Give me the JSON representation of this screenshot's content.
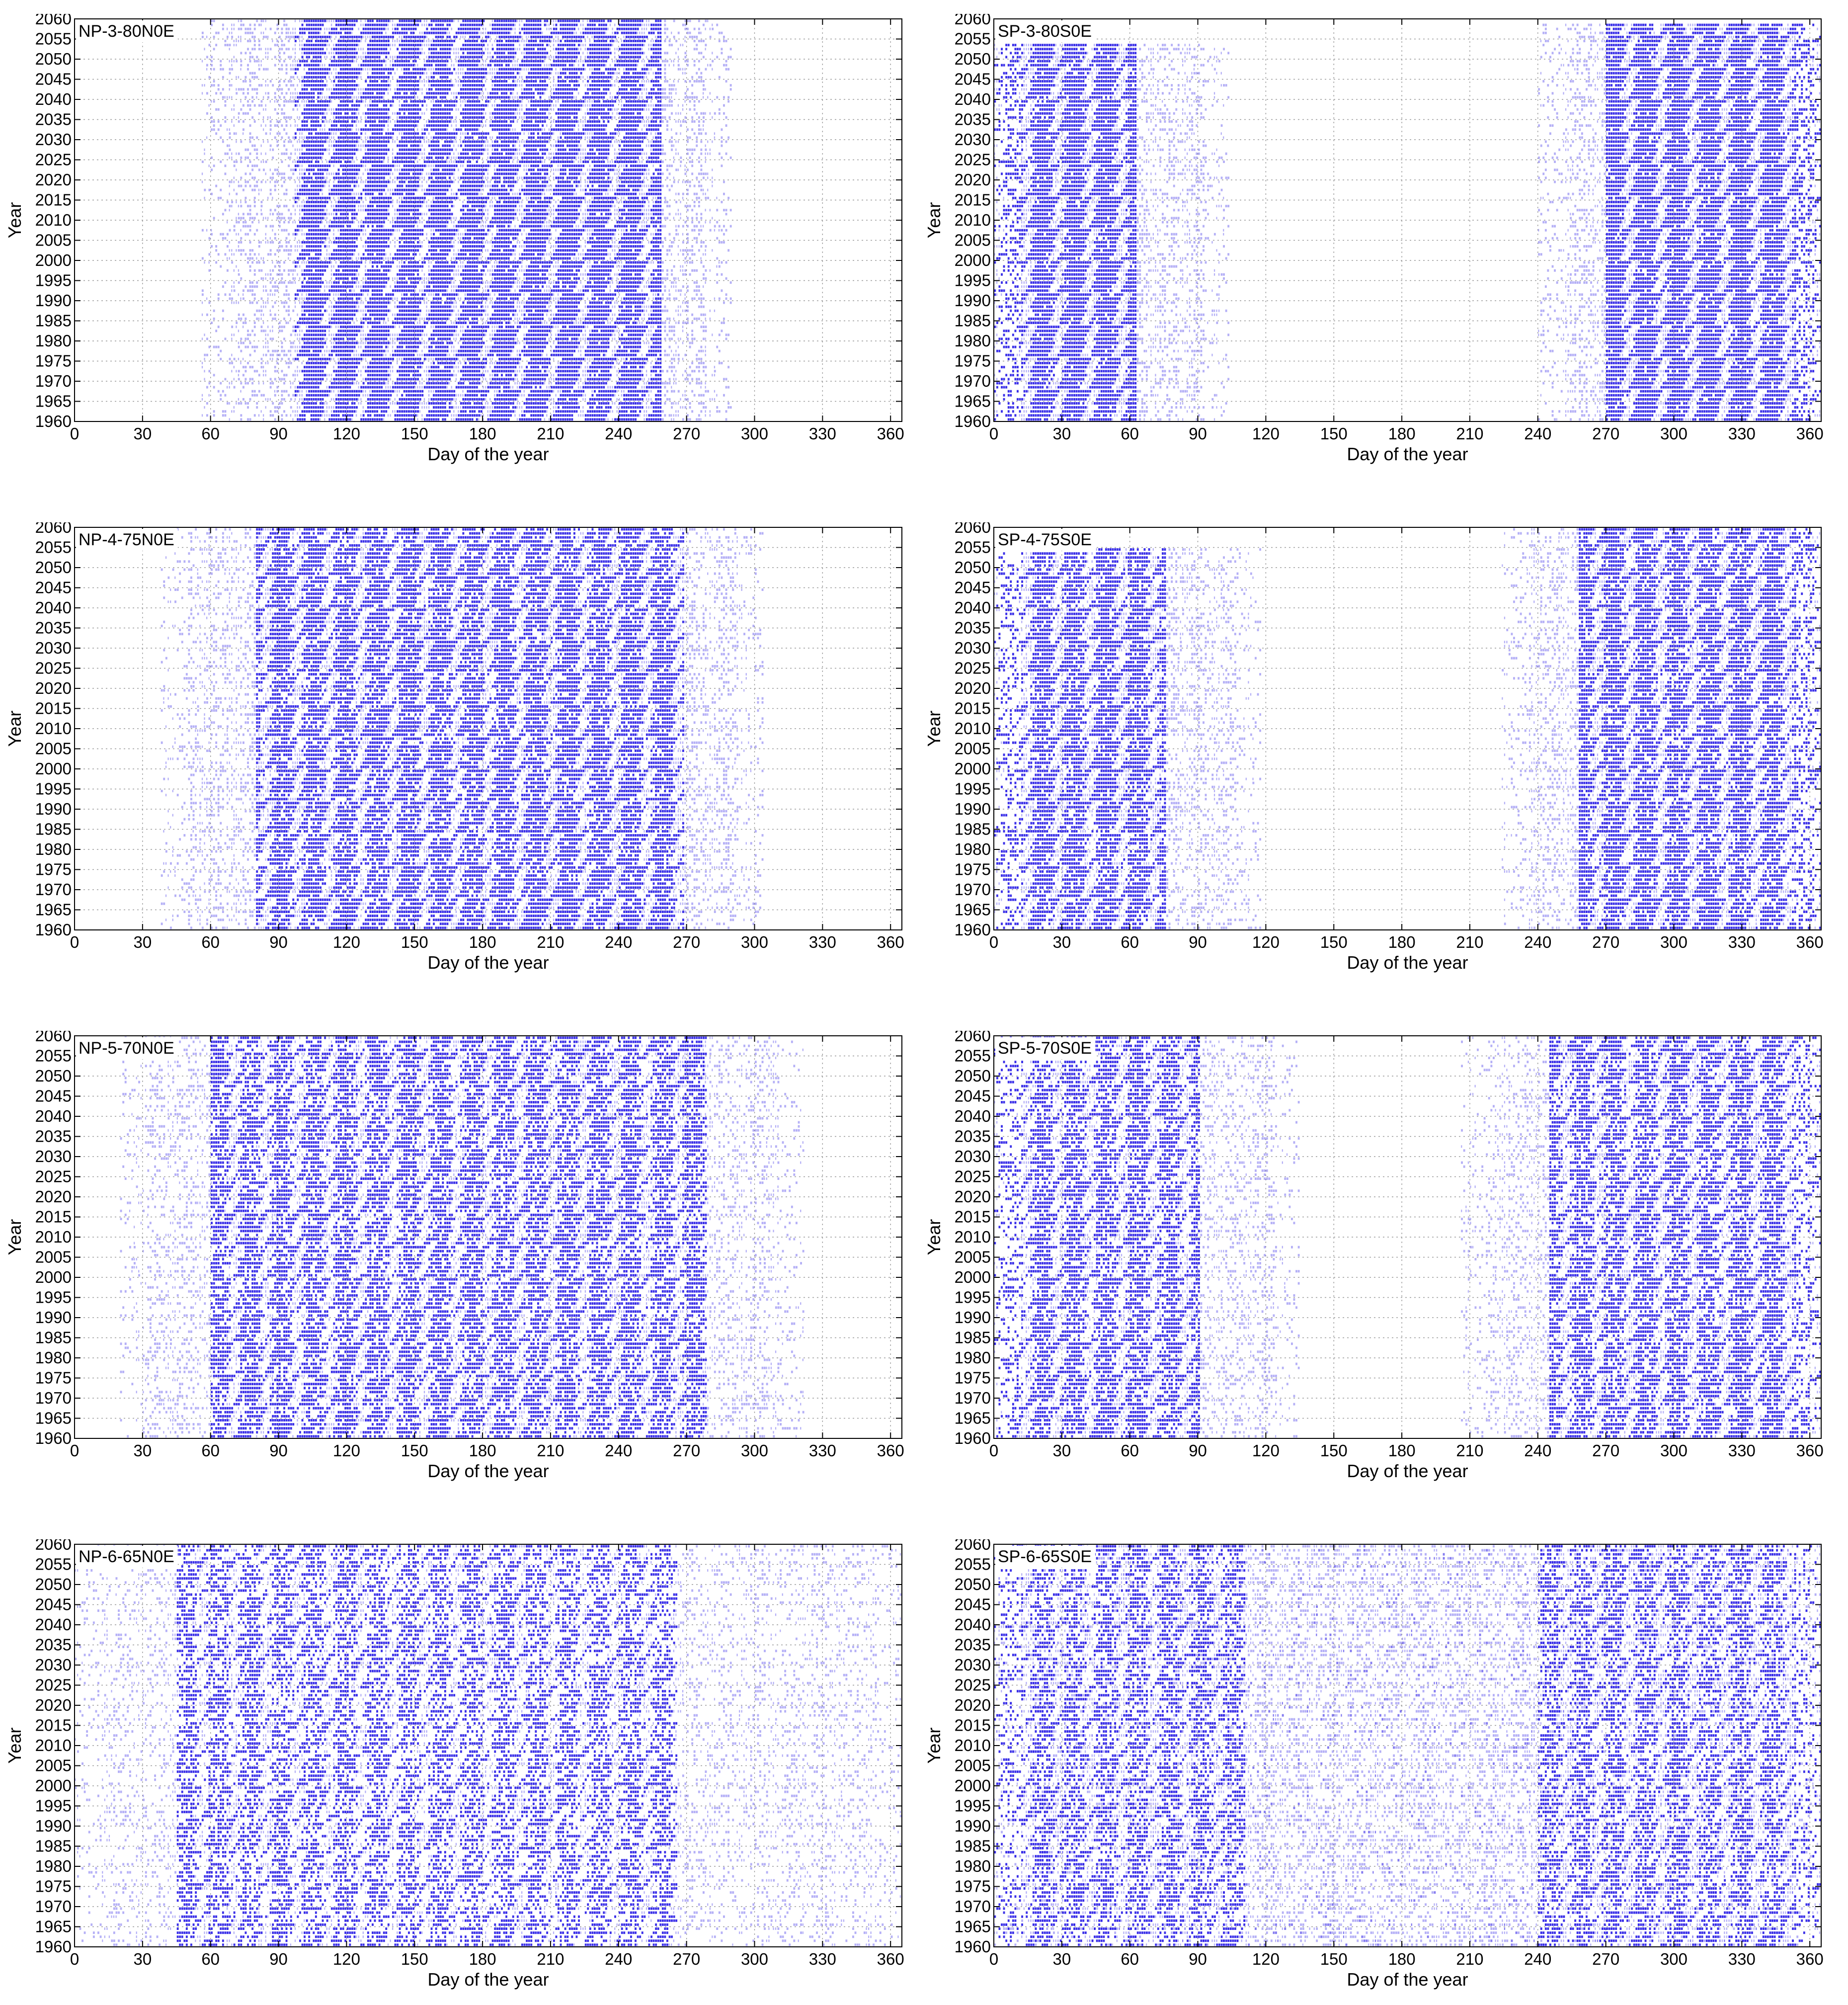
{
  "chart_data": [
    {
      "type": "scatter",
      "title": "NP-3-80N0E",
      "xlabel": "Day of the year",
      "ylabel": "Year",
      "xlim": [
        0,
        365
      ],
      "ylim": [
        1960,
        2060
      ],
      "xticks": [
        "0",
        "30",
        "60",
        "90",
        "120",
        "150",
        "180",
        "210",
        "240",
        "270",
        "300",
        "330",
        "360"
      ],
      "yticks": [
        "1960",
        "1965",
        "1970",
        "1975",
        "1980",
        "1985",
        "1990",
        "1995",
        "2000",
        "2005",
        "2010",
        "2015",
        "2020",
        "2025",
        "2030",
        "2035",
        "2040",
        "2045",
        "2050",
        "2055",
        "2060"
      ],
      "grid": true,
      "color": "#2a1ee6",
      "series": [
        {
          "name": "",
          "day_start": 56,
          "day_end": 290,
          "year_start": 1960,
          "year_end": 2059,
          "core_day_start": 97,
          "core_day_end": 258,
          "density": 0.95
        }
      ]
    },
    {
      "type": "scatter",
      "title": "SP-3-80S0E",
      "xlabel": "Day of the year",
      "ylabel": "Year",
      "xlim": [
        0,
        365
      ],
      "ylim": [
        1960,
        2060
      ],
      "xticks": [
        "0",
        "30",
        "60",
        "90",
        "120",
        "150",
        "180",
        "210",
        "240",
        "270",
        "300",
        "330",
        "360"
      ],
      "yticks": [
        "1960",
        "1965",
        "1970",
        "1975",
        "1980",
        "1985",
        "1990",
        "1995",
        "2000",
        "2005",
        "2010",
        "2015",
        "2020",
        "2025",
        "2030",
        "2035",
        "2040",
        "2045",
        "2050",
        "2055",
        "2060"
      ],
      "grid": true,
      "color": "#2a1ee6",
      "series": [
        {
          "name": "",
          "day_start": 0,
          "day_end": 104,
          "year_start": 1960,
          "year_end": 2053,
          "core_day_start": 0,
          "core_day_end": 62,
          "density": 0.95
        },
        {
          "name": "",
          "day_start": 240,
          "day_end": 365,
          "year_start": 1960,
          "year_end": 2058,
          "core_day_start": 270,
          "core_day_end": 365,
          "density": 0.95
        }
      ]
    },
    {
      "type": "scatter",
      "title": "NP-4-75N0E",
      "xlabel": "Day of the year",
      "ylabel": "Year",
      "xlim": [
        0,
        365
      ],
      "ylim": [
        1960,
        2060
      ],
      "xticks": [
        "0",
        "30",
        "60",
        "90",
        "120",
        "150",
        "180",
        "210",
        "240",
        "270",
        "300",
        "330",
        "360"
      ],
      "yticks": [
        "1960",
        "1965",
        "1970",
        "1975",
        "1980",
        "1985",
        "1990",
        "1995",
        "2000",
        "2005",
        "2010",
        "2015",
        "2020",
        "2025",
        "2030",
        "2035",
        "2040",
        "2045",
        "2050",
        "2055",
        "2060"
      ],
      "grid": true,
      "color": "#2a1ee6",
      "series": [
        {
          "name": "",
          "day_start": 38,
          "day_end": 304,
          "year_start": 1960,
          "year_end": 2059,
          "core_day_start": 80,
          "core_day_end": 268,
          "density": 0.85
        }
      ]
    },
    {
      "type": "scatter",
      "title": "SP-4-75S0E",
      "xlabel": "Day of the year",
      "ylabel": "Year",
      "xlim": [
        0,
        365
      ],
      "ylim": [
        1960,
        2060
      ],
      "xticks": [
        "0",
        "30",
        "60",
        "90",
        "120",
        "150",
        "180",
        "210",
        "240",
        "270",
        "300",
        "330",
        "360"
      ],
      "yticks": [
        "1960",
        "1965",
        "1970",
        "1975",
        "1980",
        "1985",
        "1990",
        "1995",
        "2000",
        "2005",
        "2010",
        "2015",
        "2020",
        "2025",
        "2030",
        "2035",
        "2040",
        "2045",
        "2050",
        "2055",
        "2060"
      ],
      "grid": true,
      "color": "#2a1ee6",
      "series": [
        {
          "name": "",
          "day_start": 0,
          "day_end": 118,
          "year_start": 1960,
          "year_end": 2054,
          "core_day_start": 0,
          "core_day_end": 75,
          "density": 0.85
        },
        {
          "name": "",
          "day_start": 224,
          "day_end": 365,
          "year_start": 1960,
          "year_end": 2059,
          "core_day_start": 258,
          "core_day_end": 365,
          "density": 0.85
        }
      ]
    },
    {
      "type": "scatter",
      "title": "NP-5-70N0E",
      "xlabel": "Day of the year",
      "ylabel": "Year",
      "xlim": [
        0,
        365
      ],
      "ylim": [
        1960,
        2060
      ],
      "xticks": [
        "0",
        "30",
        "60",
        "90",
        "120",
        "150",
        "180",
        "210",
        "240",
        "270",
        "300",
        "330",
        "360"
      ],
      "yticks": [
        "1960",
        "1965",
        "1970",
        "1975",
        "1980",
        "1985",
        "1990",
        "1995",
        "2000",
        "2005",
        "2010",
        "2015",
        "2020",
        "2025",
        "2030",
        "2035",
        "2040",
        "2045",
        "2050",
        "2055",
        "2060"
      ],
      "grid": true,
      "color": "#2a1ee6",
      "series": [
        {
          "name": "",
          "day_start": 20,
          "day_end": 322,
          "year_start": 1960,
          "year_end": 2059,
          "core_day_start": 60,
          "core_day_end": 278,
          "density": 0.75
        }
      ]
    },
    {
      "type": "scatter",
      "title": "SP-5-70S0E",
      "xlabel": "Day of the year",
      "ylabel": "Year",
      "xlim": [
        0,
        365
      ],
      "ylim": [
        1960,
        2060
      ],
      "xticks": [
        "0",
        "30",
        "60",
        "90",
        "120",
        "150",
        "180",
        "210",
        "240",
        "270",
        "300",
        "330",
        "360"
      ],
      "yticks": [
        "1960",
        "1965",
        "1970",
        "1975",
        "1980",
        "1985",
        "1990",
        "1995",
        "2000",
        "2005",
        "2010",
        "2015",
        "2020",
        "2025",
        "2030",
        "2035",
        "2040",
        "2045",
        "2050",
        "2055",
        "2060"
      ],
      "grid": true,
      "color": "#2a1ee6",
      "series": [
        {
          "name": "",
          "day_start": 0,
          "day_end": 135,
          "year_start": 1960,
          "year_end": 2059,
          "core_day_start": 0,
          "core_day_end": 90,
          "density": 0.75
        },
        {
          "name": "",
          "day_start": 206,
          "day_end": 365,
          "year_start": 1960,
          "year_end": 2059,
          "core_day_start": 245,
          "core_day_end": 365,
          "density": 0.75
        }
      ]
    },
    {
      "type": "scatter",
      "title": "NP-6-65N0E",
      "xlabel": "Day of the year",
      "ylabel": "Year",
      "xlim": [
        0,
        365
      ],
      "ylim": [
        1960,
        2060
      ],
      "xticks": [
        "0",
        "30",
        "60",
        "90",
        "120",
        "150",
        "180",
        "210",
        "240",
        "270",
        "300",
        "330",
        "360"
      ],
      "yticks": [
        "1960",
        "1965",
        "1970",
        "1975",
        "1980",
        "1985",
        "1990",
        "1995",
        "2000",
        "2005",
        "2010",
        "2015",
        "2020",
        "2025",
        "2030",
        "2035",
        "2040",
        "2045",
        "2050",
        "2055",
        "2060"
      ],
      "grid": true,
      "color": "#2a1ee6",
      "series": [
        {
          "name": "",
          "day_start": 0,
          "day_end": 365,
          "year_start": 1960,
          "year_end": 2059,
          "core_day_start": 45,
          "core_day_end": 265,
          "density": 0.6
        }
      ]
    },
    {
      "type": "scatter",
      "title": "SP-6-65S0E",
      "xlabel": "Day of the year",
      "ylabel": "Year",
      "xlim": [
        0,
        365
      ],
      "ylim": [
        1960,
        2060
      ],
      "xticks": [
        "0",
        "30",
        "60",
        "90",
        "120",
        "150",
        "180",
        "210",
        "240",
        "270",
        "300",
        "330",
        "360"
      ],
      "yticks": [
        "1960",
        "1965",
        "1970",
        "1975",
        "1980",
        "1985",
        "1990",
        "1995",
        "2000",
        "2005",
        "2010",
        "2015",
        "2020",
        "2025",
        "2030",
        "2035",
        "2040",
        "2045",
        "2050",
        "2055",
        "2060"
      ],
      "grid": true,
      "color": "#2a1ee6",
      "series": [
        {
          "name": "",
          "day_start": 0,
          "day_end": 365,
          "year_start": 1960,
          "year_end": 2059,
          "core_day_start": 0,
          "core_day_end": 110,
          "density": 0.6
        },
        {
          "name": "",
          "day_start": 0,
          "day_end": 365,
          "year_start": 1960,
          "year_end": 2059,
          "core_day_start": 240,
          "core_day_end": 365,
          "density": 0.6
        }
      ]
    }
  ]
}
